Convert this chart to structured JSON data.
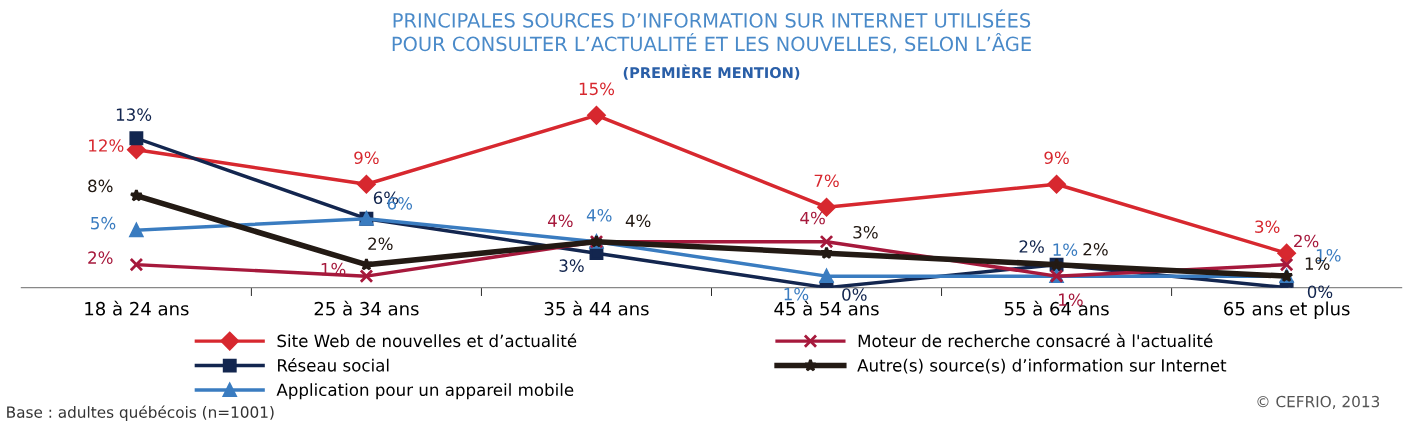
{
  "chart_data": {
    "type": "line",
    "title": "PRINCIPALES SOURCES D’INFORMATION SUR INTERNET UTILISÉES\nPOUR CONSULTER L’ACTUALITÉ ET LES NOUVELLES, SELON L’ÂGE",
    "subtitle": "(PREMIÈRE MENTION)",
    "categories": [
      "18 à 24 ans",
      "25 à 34 ans",
      "35 à 44 ans",
      "45 à 54 ans",
      "55 à 64 ans",
      "65 ans et plus"
    ],
    "series": [
      {
        "name": "Site Web de nouvelles et d’actualité",
        "color": "#d7282f",
        "marker": "diamond",
        "values": [
          12,
          9,
          15,
          7,
          9,
          3
        ],
        "value_labels": [
          "12%",
          "9%",
          "15%",
          "7%",
          "9%",
          "3%"
        ]
      },
      {
        "name": "Réseau social",
        "color": "#13264f",
        "marker": "square",
        "values": [
          13,
          6,
          3,
          0,
          2,
          0
        ],
        "value_labels": [
          "13%",
          "6%",
          "3%",
          "0%",
          "2%",
          "0%"
        ]
      },
      {
        "name": "Application pour un appareil mobile",
        "color": "#3a7cc0",
        "marker": "triangle",
        "values": [
          5,
          6,
          4,
          1,
          1,
          1
        ],
        "value_labels": [
          "5%",
          "6%",
          "4%",
          "1%",
          "1%",
          "1%"
        ]
      },
      {
        "name": "Moteur de recherche consacré à l'actualité",
        "color": "#a6193c",
        "marker": "cross",
        "values": [
          2,
          1,
          4,
          4,
          1,
          2
        ],
        "value_labels": [
          "2%",
          "1%",
          "4%",
          "4%",
          "1%",
          "2%"
        ]
      },
      {
        "name": "Autre(s) source(s) d’information sur Internet",
        "color": "#231a14",
        "marker": "star",
        "values": [
          8,
          2,
          4,
          3,
          2,
          1
        ],
        "value_labels": [
          "8%",
          "2%",
          "4%",
          "3%",
          "2%",
          "1%"
        ]
      }
    ],
    "legend": "bottom",
    "grid": false,
    "annotations": [
      "Base : adultes québécois (n=1001)",
      "© CEFRIO, 2013"
    ]
  }
}
